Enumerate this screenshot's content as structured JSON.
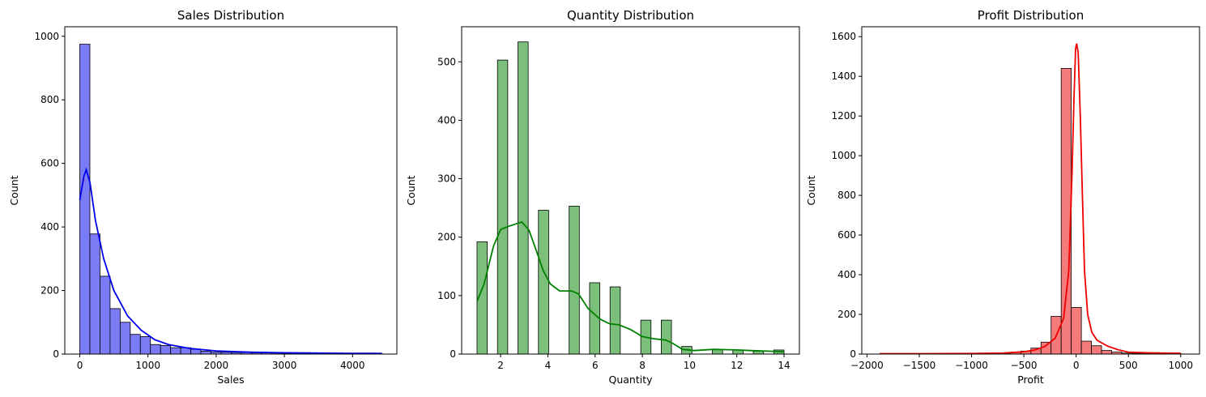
{
  "chart_data": [
    {
      "type": "histogram",
      "title": "Sales Distribution",
      "xlabel": "Sales",
      "ylabel": "Count",
      "xlim": [
        -220,
        4650
      ],
      "ylim": [
        0,
        1030
      ],
      "xticks": [
        0,
        1000,
        2000,
        3000,
        4000
      ],
      "yticks": [
        0,
        200,
        400,
        600,
        800,
        1000
      ],
      "bin_width": 148,
      "bin_start": 0,
      "values": [
        975,
        378,
        245,
        143,
        100,
        62,
        55,
        30,
        27,
        20,
        20,
        15,
        9,
        6,
        6,
        5,
        5,
        4,
        4,
        3,
        2,
        3,
        2,
        2,
        2,
        2,
        1,
        1,
        1,
        1
      ],
      "kde": [
        [
          0,
          485
        ],
        [
          60,
          560
        ],
        [
          95,
          580
        ],
        [
          150,
          540
        ],
        [
          230,
          420
        ],
        [
          350,
          300
        ],
        [
          500,
          200
        ],
        [
          700,
          120
        ],
        [
          900,
          75
        ],
        [
          1100,
          45
        ],
        [
          1300,
          30
        ],
        [
          1600,
          18
        ],
        [
          2000,
          10
        ],
        [
          2500,
          6
        ],
        [
          3000,
          4
        ],
        [
          3500,
          3
        ],
        [
          4000,
          2
        ],
        [
          4430,
          2
        ]
      ],
      "fill": "#7b7bf5",
      "line": "#0000ee"
    },
    {
      "type": "histogram",
      "title": "Quantity Distribution",
      "xlabel": "Quantity",
      "ylabel": "Count",
      "xlim": [
        0.35,
        14.65
      ],
      "ylim": [
        0,
        560
      ],
      "xticks": [
        2,
        4,
        6,
        8,
        10,
        12,
        14
      ],
      "yticks": [
        0,
        100,
        200,
        300,
        400,
        500
      ],
      "bin_width": 0.4333,
      "bin_start": 1,
      "values": [
        192,
        0,
        503,
        0,
        534,
        0,
        246,
        0,
        0,
        253,
        0,
        122,
        0,
        115,
        0,
        0,
        58,
        0,
        58,
        0,
        13,
        0,
        0,
        8,
        0,
        7,
        0,
        5,
        0,
        7
      ],
      "kde": [
        [
          1,
          90
        ],
        [
          1.3,
          120
        ],
        [
          1.7,
          185
        ],
        [
          2,
          213
        ],
        [
          2.3,
          218
        ],
        [
          2.6,
          222
        ],
        [
          2.9,
          226
        ],
        [
          3.2,
          212
        ],
        [
          3.5,
          178
        ],
        [
          3.8,
          143
        ],
        [
          4.1,
          120
        ],
        [
          4.5,
          108
        ],
        [
          5,
          108
        ],
        [
          5.3,
          103
        ],
        [
          5.7,
          78
        ],
        [
          6.2,
          60
        ],
        [
          6.6,
          52
        ],
        [
          7.0,
          50
        ],
        [
          7.5,
          42
        ],
        [
          8.0,
          30
        ],
        [
          8.5,
          26
        ],
        [
          9.0,
          24
        ],
        [
          9.3,
          18
        ],
        [
          9.7,
          8
        ],
        [
          10.2,
          6
        ],
        [
          11,
          8
        ],
        [
          12,
          7
        ],
        [
          12.6,
          6
        ],
        [
          13.3,
          5
        ],
        [
          14,
          4
        ]
      ],
      "fill": "#7bbf7b",
      "line": "#008000"
    },
    {
      "type": "histogram",
      "title": "Profit Distribution",
      "xlabel": "Profit",
      "ylabel": "Count",
      "xlim": [
        -2050,
        1180
      ],
      "ylim": [
        0,
        1650
      ],
      "xticks": [
        -2000,
        -1500,
        -1000,
        -500,
        0,
        500,
        1000
      ],
      "yticks": [
        0,
        200,
        400,
        600,
        800,
        1000,
        1200,
        1400,
        1600
      ],
      "bin_width": 96.5,
      "bin_start": -1880,
      "values": [
        1,
        0,
        0,
        0,
        0,
        0,
        0,
        1,
        1,
        1,
        2,
        3,
        4,
        10,
        15,
        30,
        60,
        190,
        1440,
        235,
        65,
        42,
        18,
        10,
        5,
        4,
        2,
        1,
        1,
        1
      ],
      "kde": [
        [
          -1880,
          2
        ],
        [
          -1500,
          2
        ],
        [
          -1000,
          3
        ],
        [
          -700,
          5
        ],
        [
          -500,
          12
        ],
        [
          -400,
          20
        ],
        [
          -300,
          38
        ],
        [
          -200,
          80
        ],
        [
          -120,
          180
        ],
        [
          -70,
          420
        ],
        [
          -40,
          900
        ],
        [
          -20,
          1300
        ],
        [
          -5,
          1540
        ],
        [
          5,
          1565
        ],
        [
          20,
          1520
        ],
        [
          40,
          1200
        ],
        [
          60,
          800
        ],
        [
          80,
          420
        ],
        [
          110,
          200
        ],
        [
          150,
          110
        ],
        [
          200,
          70
        ],
        [
          300,
          40
        ],
        [
          400,
          22
        ],
        [
          500,
          10
        ],
        [
          700,
          6
        ],
        [
          1000,
          4
        ]
      ],
      "fill": "#f57b7b",
      "line": "#ee0000"
    }
  ]
}
